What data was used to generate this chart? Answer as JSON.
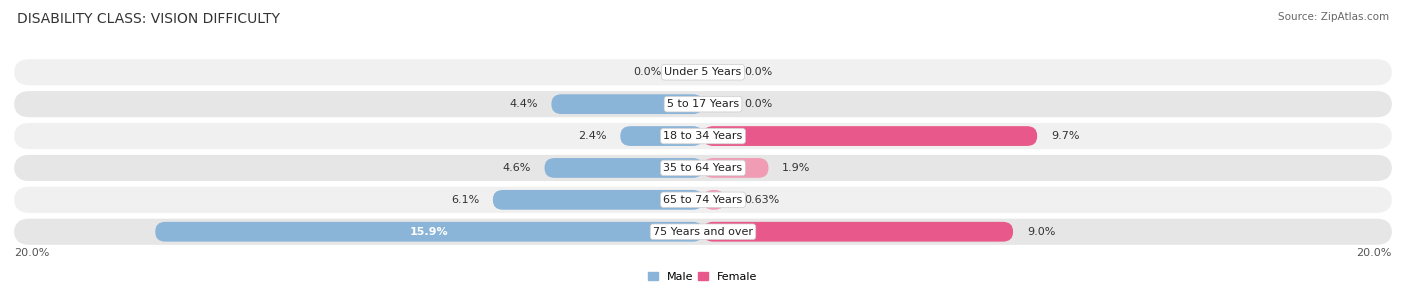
{
  "title": "DISABILITY CLASS: VISION DIFFICULTY",
  "source": "Source: ZipAtlas.com",
  "categories": [
    "Under 5 Years",
    "5 to 17 Years",
    "18 to 34 Years",
    "35 to 64 Years",
    "65 to 74 Years",
    "75 Years and over"
  ],
  "male_values": [
    0.0,
    4.4,
    2.4,
    4.6,
    6.1,
    15.9
  ],
  "female_values": [
    0.0,
    0.0,
    9.7,
    1.9,
    0.63,
    9.0
  ],
  "male_color": "#8ab4d8",
  "female_color": "#f09cb5",
  "female_color_vivid": "#e8588a",
  "row_colors": [
    "#f2f2f2",
    "#e8e8e8"
  ],
  "row_bg_light": "#f7f7f7",
  "x_max": 20.0,
  "axis_label_left": "20.0%",
  "axis_label_right": "20.0%",
  "legend_male": "Male",
  "legend_female": "Female",
  "title_fontsize": 10,
  "source_fontsize": 7.5,
  "label_fontsize": 8,
  "category_fontsize": 8
}
